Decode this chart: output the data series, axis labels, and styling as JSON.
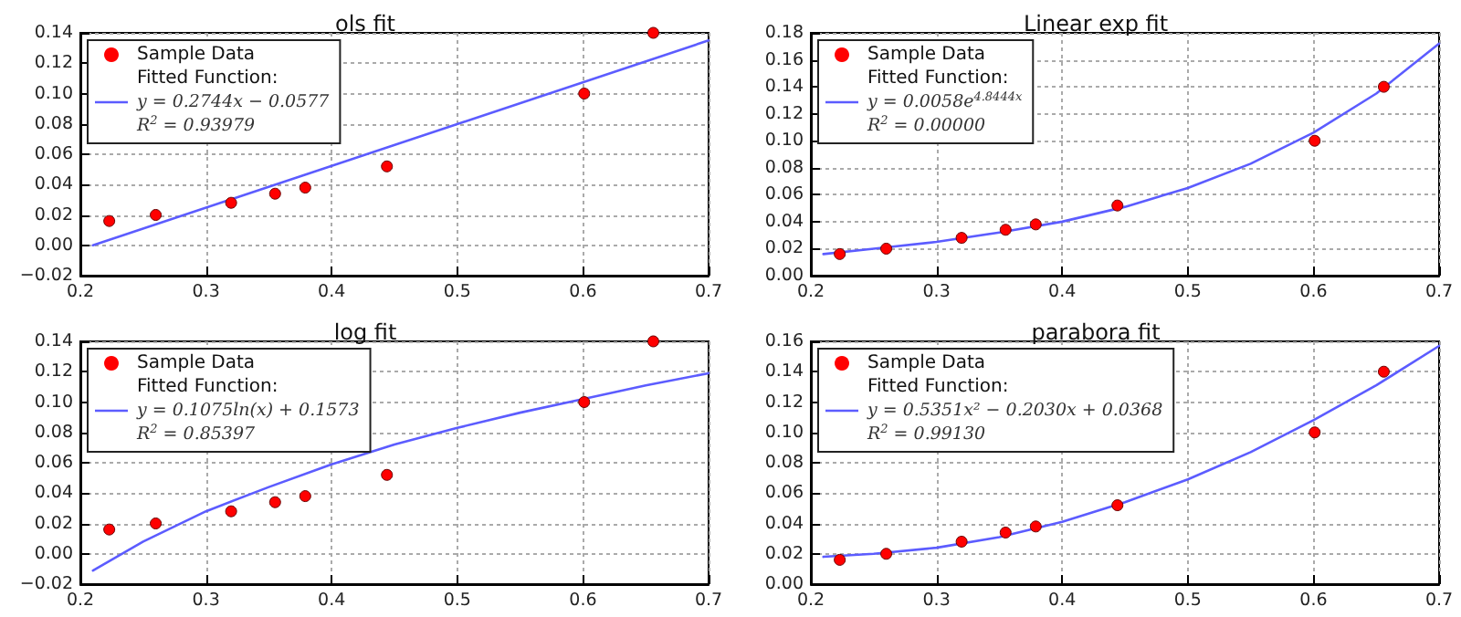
{
  "chart_data": [
    {
      "type": "scatter",
      "title": "ols fit",
      "xlim": [
        0.2,
        0.7
      ],
      "xticks": [
        0.2,
        0.3,
        0.4,
        0.5,
        0.6,
        0.7
      ],
      "ylim": [
        -0.02,
        0.14
      ],
      "yticks": [
        {
          "value": -0.02,
          "label": "−0.02"
        },
        {
          "value": 0,
          "label": "0.00"
        },
        {
          "value": 0.02,
          "label": "0.02"
        },
        {
          "value": 0.04,
          "label": "0.04"
        },
        {
          "value": 0.06,
          "label": "0.06"
        },
        {
          "value": 0.08,
          "label": "0.08"
        },
        {
          "value": 0.1,
          "label": "0.10"
        },
        {
          "value": 0.12,
          "label": "0.12"
        },
        {
          "value": 0.14,
          "label": "0.14"
        }
      ],
      "grid": true,
      "legend": "top left",
      "legend_title": "Fitted Function:",
      "annotations": [
        "R$^{2}$ = 0.93979"
      ],
      "series": [
        {
          "name": "Sample Data",
          "marker": "circle",
          "color": "#ff0000",
          "x": [
            0.223,
            0.26,
            0.32,
            0.355,
            0.379,
            0.444,
            0.601,
            0.656
          ],
          "values": [
            0.016,
            0.02,
            0.028,
            0.034,
            0.038,
            0.052,
            0.1,
            0.14
          ]
        },
        {
          "name": "y = 0.2744x − 0.0577",
          "type": "line",
          "color": "#5c5cff",
          "x": [
            0.21,
            0.7
          ],
          "values": [
            0.0,
            0.135
          ]
        }
      ]
    },
    {
      "type": "scatter",
      "title": "Linear exp fit",
      "xlim": [
        0.2,
        0.7
      ],
      "xticks": [
        0.2,
        0.3,
        0.4,
        0.5,
        0.6,
        0.7
      ],
      "ylim": [
        0,
        0.18
      ],
      "yticks": [
        {
          "value": 0,
          "label": "0.00"
        },
        {
          "value": 0.02,
          "label": "0.02"
        },
        {
          "value": 0.04,
          "label": "0.04"
        },
        {
          "value": 0.06,
          "label": "0.06"
        },
        {
          "value": 0.08,
          "label": "0.08"
        },
        {
          "value": 0.1,
          "label": "0.10"
        },
        {
          "value": 0.12,
          "label": "0.12"
        },
        {
          "value": 0.14,
          "label": "0.14"
        },
        {
          "value": 0.16,
          "label": "0.16"
        },
        {
          "value": 0.18,
          "label": "0.18"
        }
      ],
      "grid": true,
      "legend": "top left",
      "legend_title": "Fitted Function:",
      "annotations": [
        "R$^{2}$ = 0.00000"
      ],
      "series": [
        {
          "name": "Sample Data",
          "marker": "circle",
          "color": "#ff0000",
          "x": [
            0.223,
            0.26,
            0.32,
            0.355,
            0.379,
            0.444,
            0.601,
            0.656
          ],
          "values": [
            0.016,
            0.02,
            0.028,
            0.034,
            0.038,
            0.052,
            0.1,
            0.14
          ]
        },
        {
          "name": "y = 0.0058e$^{4.8444x}$",
          "type": "line",
          "color": "#5c5cff",
          "x": [
            0.21,
            0.25,
            0.3,
            0.35,
            0.4,
            0.45,
            0.5,
            0.55,
            0.6,
            0.65,
            0.7
          ],
          "values": [
            0.016,
            0.02,
            0.025,
            0.032,
            0.04,
            0.051,
            0.065,
            0.083,
            0.106,
            0.135,
            0.172
          ]
        }
      ]
    },
    {
      "type": "scatter",
      "title": "log fit",
      "xlim": [
        0.2,
        0.7
      ],
      "xticks": [
        0.2,
        0.3,
        0.4,
        0.5,
        0.6,
        0.7
      ],
      "ylim": [
        -0.02,
        0.14
      ],
      "yticks": [
        {
          "value": -0.02,
          "label": "−0.02"
        },
        {
          "value": 0,
          "label": "0.00"
        },
        {
          "value": 0.02,
          "label": "0.02"
        },
        {
          "value": 0.04,
          "label": "0.04"
        },
        {
          "value": 0.06,
          "label": "0.06"
        },
        {
          "value": 0.08,
          "label": "0.08"
        },
        {
          "value": 0.1,
          "label": "0.10"
        },
        {
          "value": 0.12,
          "label": "0.12"
        },
        {
          "value": 0.14,
          "label": "0.14"
        }
      ],
      "grid": true,
      "legend": "top left",
      "legend_title": "Fitted Function:",
      "annotations": [
        "R$^{2}$ = 0.85397"
      ],
      "series": [
        {
          "name": "Sample Data",
          "marker": "circle",
          "color": "#ff0000",
          "x": [
            0.223,
            0.26,
            0.32,
            0.355,
            0.379,
            0.444,
            0.601,
            0.656
          ],
          "values": [
            0.016,
            0.02,
            0.028,
            0.034,
            0.038,
            0.052,
            0.1,
            0.14
          ]
        },
        {
          "name": "y = 0.1075ln(x) + 0.1573",
          "type": "line",
          "color": "#5c5cff",
          "x": [
            0.21,
            0.25,
            0.3,
            0.35,
            0.4,
            0.45,
            0.5,
            0.55,
            0.6,
            0.65,
            0.7
          ],
          "values": [
            -0.011,
            0.008,
            0.028,
            0.044,
            0.059,
            0.072,
            0.083,
            0.093,
            0.102,
            0.111,
            0.119
          ]
        }
      ]
    },
    {
      "type": "scatter",
      "title": "parabora fit",
      "xlim": [
        0.2,
        0.7
      ],
      "xticks": [
        0.2,
        0.3,
        0.4,
        0.5,
        0.6,
        0.7
      ],
      "ylim": [
        0,
        0.16
      ],
      "yticks": [
        {
          "value": 0,
          "label": "0.00"
        },
        {
          "value": 0.02,
          "label": "0.02"
        },
        {
          "value": 0.04,
          "label": "0.04"
        },
        {
          "value": 0.06,
          "label": "0.06"
        },
        {
          "value": 0.08,
          "label": "0.08"
        },
        {
          "value": 0.1,
          "label": "0.10"
        },
        {
          "value": 0.12,
          "label": "0.12"
        },
        {
          "value": 0.14,
          "label": "0.14"
        },
        {
          "value": 0.16,
          "label": "0.16"
        }
      ],
      "grid": true,
      "legend": "top left",
      "legend_title": "Fitted Function:",
      "annotations": [
        "R$^{2}$ = 0.99130"
      ],
      "series": [
        {
          "name": "Sample Data",
          "marker": "circle",
          "color": "#ff0000",
          "x": [
            0.223,
            0.26,
            0.32,
            0.355,
            0.379,
            0.444,
            0.601,
            0.656
          ],
          "values": [
            0.016,
            0.02,
            0.028,
            0.034,
            0.038,
            0.052,
            0.1,
            0.14
          ]
        },
        {
          "name": "y = 0.5351x² − 0.2030x + 0.0368",
          "type": "line",
          "color": "#5c5cff",
          "x": [
            0.21,
            0.25,
            0.3,
            0.35,
            0.4,
            0.45,
            0.5,
            0.55,
            0.6,
            0.65,
            0.7
          ],
          "values": [
            0.018,
            0.02,
            0.024,
            0.031,
            0.041,
            0.054,
            0.069,
            0.087,
            0.108,
            0.131,
            0.157
          ]
        }
      ]
    }
  ]
}
